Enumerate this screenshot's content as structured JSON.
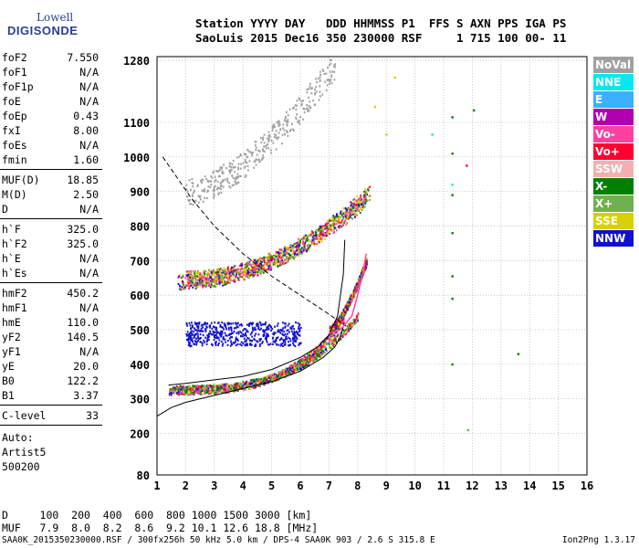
{
  "logo": {
    "line1": "Lowell",
    "line2": "DIGISONDE"
  },
  "header": {
    "row1": "Station YYYY DAY   DDD HHMMSS P1  FFS S AXN PPS IGA PS",
    "row2": "SaoLuis 2015 Dec16 350 230000 RSF     1 715 100 00- 11"
  },
  "params_group1": [
    {
      "key": "foF2",
      "value": "7.550"
    },
    {
      "key": "foF1",
      "value": "N/A"
    },
    {
      "key": "foF1p",
      "value": "N/A"
    },
    {
      "key": "foE",
      "value": "N/A"
    },
    {
      "key": "foEp",
      "value": "0.43"
    },
    {
      "key": "fxI",
      "value": "8.00"
    },
    {
      "key": "foEs",
      "value": "N/A"
    },
    {
      "key": "fmin",
      "value": "1.60"
    }
  ],
  "params_group2": [
    {
      "key": "MUF(D)",
      "value": "18.85"
    },
    {
      "key": "M(D)",
      "value": "2.50"
    },
    {
      "key": "D",
      "value": "N/A"
    }
  ],
  "params_group3": [
    {
      "key": "h`F",
      "value": "325.0"
    },
    {
      "key": "h`F2",
      "value": "325.0"
    },
    {
      "key": "h`E",
      "value": "N/A"
    },
    {
      "key": "h`Es",
      "value": "N/A"
    }
  ],
  "params_group4": [
    {
      "key": "hmF2",
      "value": "450.2"
    },
    {
      "key": "hmF1",
      "value": "N/A"
    },
    {
      "key": "hmE",
      "value": "110.0"
    },
    {
      "key": "yF2",
      "value": "140.5"
    },
    {
      "key": "yF1",
      "value": "N/A"
    },
    {
      "key": "yE",
      "value": "20.0"
    },
    {
      "key": "B0",
      "value": "122.2"
    },
    {
      "key": "B1",
      "value": "3.37"
    }
  ],
  "params_group5": [
    {
      "key": "C-level",
      "value": "33"
    }
  ],
  "auto": {
    "line1": "Auto:",
    "line2": "Artist5",
    "line3": "500200"
  },
  "legend": [
    {
      "label": "NoVal",
      "color": "#a0a0a0"
    },
    {
      "label": "NNE",
      "color": "#00e8f0"
    },
    {
      "label": "E",
      "color": "#3ab0ff"
    },
    {
      "label": "W",
      "color": "#b000b0"
    },
    {
      "label": "Vo-",
      "color": "#ff40a0"
    },
    {
      "label": "Vo+",
      "color": "#ff0030"
    },
    {
      "label": "SSW",
      "color": "#f4b0b0"
    },
    {
      "label": "X-",
      "color": "#008000"
    },
    {
      "label": "X+",
      "color": "#70b050"
    },
    {
      "label": "SSE",
      "color": "#d8d000"
    },
    {
      "label": "NNW",
      "color": "#1010d0"
    }
  ],
  "bottom": {
    "row1": "D     100  200  400  600  800 1000 1500 3000 [km]",
    "row2": "MUF   7.9  8.0  8.2  8.6  9.2 10.1 12.6 18.8 [MHz]"
  },
  "footer": {
    "file": "SAA0K_2015350230000.RSF / 300fx256h 50 kHz 5.0 km / DPS-4 SAA0K 903 / 2.6 S 315.8 E",
    "version": "Ion2Png 1.3.17"
  },
  "chart_data": {
    "type": "scatter",
    "xlim": [
      1,
      16
    ],
    "ylim": [
      80,
      1290
    ],
    "x_ticks": [
      1,
      2,
      3,
      4,
      5,
      6,
      7,
      8,
      9,
      10,
      11,
      12,
      13,
      14,
      15,
      16
    ],
    "y_ticks": [
      80,
      200,
      300,
      400,
      500,
      600,
      700,
      800,
      900,
      1000,
      1100,
      1280
    ],
    "grid": true,
    "clusters": [
      {
        "direction": "Vo-",
        "x_range": [
          1.4,
          7.5
        ],
        "y_range": [
          325,
          530
        ],
        "trend": "o_trace"
      },
      {
        "direction": "X-",
        "x_range": [
          1.5,
          8.0
        ],
        "y_range": [
          330,
          540
        ],
        "trend": "o_trace_shift"
      },
      {
        "direction": "NNW",
        "x_range": [
          2.0,
          6.0
        ],
        "y_range": [
          455,
          525
        ],
        "trend": "band"
      },
      {
        "direction": "Vo-",
        "x_range": [
          1.7,
          8.3
        ],
        "y_range": [
          640,
          880
        ],
        "trend": "second_hop"
      },
      {
        "direction": "SSE",
        "x_range": [
          2.0,
          8.4
        ],
        "y_range": [
          650,
          900
        ],
        "trend": "second_hop"
      },
      {
        "direction": "NoVal",
        "x_range": [
          2.0,
          7.2
        ],
        "y_range": [
          900,
          1270
        ],
        "trend": "third_hop"
      },
      {
        "direction": "Vo+",
        "x_range": [
          7.0,
          8.3
        ],
        "y_range": [
          500,
          700
        ],
        "trend": "cusp"
      }
    ],
    "isolated_points": [
      {
        "x": 11.3,
        "y": 1115,
        "direction": "X-"
      },
      {
        "x": 12.05,
        "y": 1135,
        "direction": "X-"
      },
      {
        "x": 11.3,
        "y": 1010,
        "direction": "X-"
      },
      {
        "x": 11.3,
        "y": 920,
        "direction": "NNE"
      },
      {
        "x": 11.3,
        "y": 890,
        "direction": "X-"
      },
      {
        "x": 11.3,
        "y": 780,
        "direction": "X-"
      },
      {
        "x": 11.3,
        "y": 655,
        "direction": "X-"
      },
      {
        "x": 11.3,
        "y": 590,
        "direction": "X-"
      },
      {
        "x": 11.3,
        "y": 400,
        "direction": "X-"
      },
      {
        "x": 13.6,
        "y": 430,
        "direction": "X-"
      },
      {
        "x": 11.85,
        "y": 210,
        "direction": "X+"
      },
      {
        "x": 8.6,
        "y": 1145,
        "direction": "SSE"
      },
      {
        "x": 9.3,
        "y": 1230,
        "direction": "SSE"
      },
      {
        "x": 9.0,
        "y": 1065,
        "direction": "SSE"
      },
      {
        "x": 11.8,
        "y": 975,
        "direction": "Vo+"
      },
      {
        "x": 10.6,
        "y": 1065,
        "direction": "NNE"
      }
    ],
    "profile_curve": {
      "x": [
        1.0,
        1.5,
        2.0,
        3.0,
        4.0,
        5.0,
        6.0,
        6.8,
        7.2,
        7.4,
        7.5
      ],
      "y": [
        250,
        275,
        290,
        310,
        330,
        350,
        380,
        420,
        450,
        480,
        510
      ]
    },
    "trace_curve": {
      "x": [
        1.4,
        2.0,
        3.0,
        4.0,
        5.0,
        6.0,
        6.6,
        7.0,
        7.3,
        7.5,
        7.55
      ],
      "y": [
        340,
        345,
        355,
        365,
        385,
        420,
        450,
        485,
        540,
        660,
        760
      ]
    },
    "muf_curve": {
      "x": [
        1.2,
        1.7,
        2.2,
        3.0,
        4.0,
        5.0,
        6.0,
        7.0,
        7.6
      ],
      "y": [
        1000,
        940,
        880,
        800,
        720,
        655,
        600,
        545,
        510
      ]
    },
    "extra_trace": {
      "x": [
        7.0,
        7.4,
        7.8,
        8.0,
        8.2,
        8.3
      ],
      "y": [
        490,
        500,
        540,
        600,
        670,
        720
      ]
    }
  }
}
